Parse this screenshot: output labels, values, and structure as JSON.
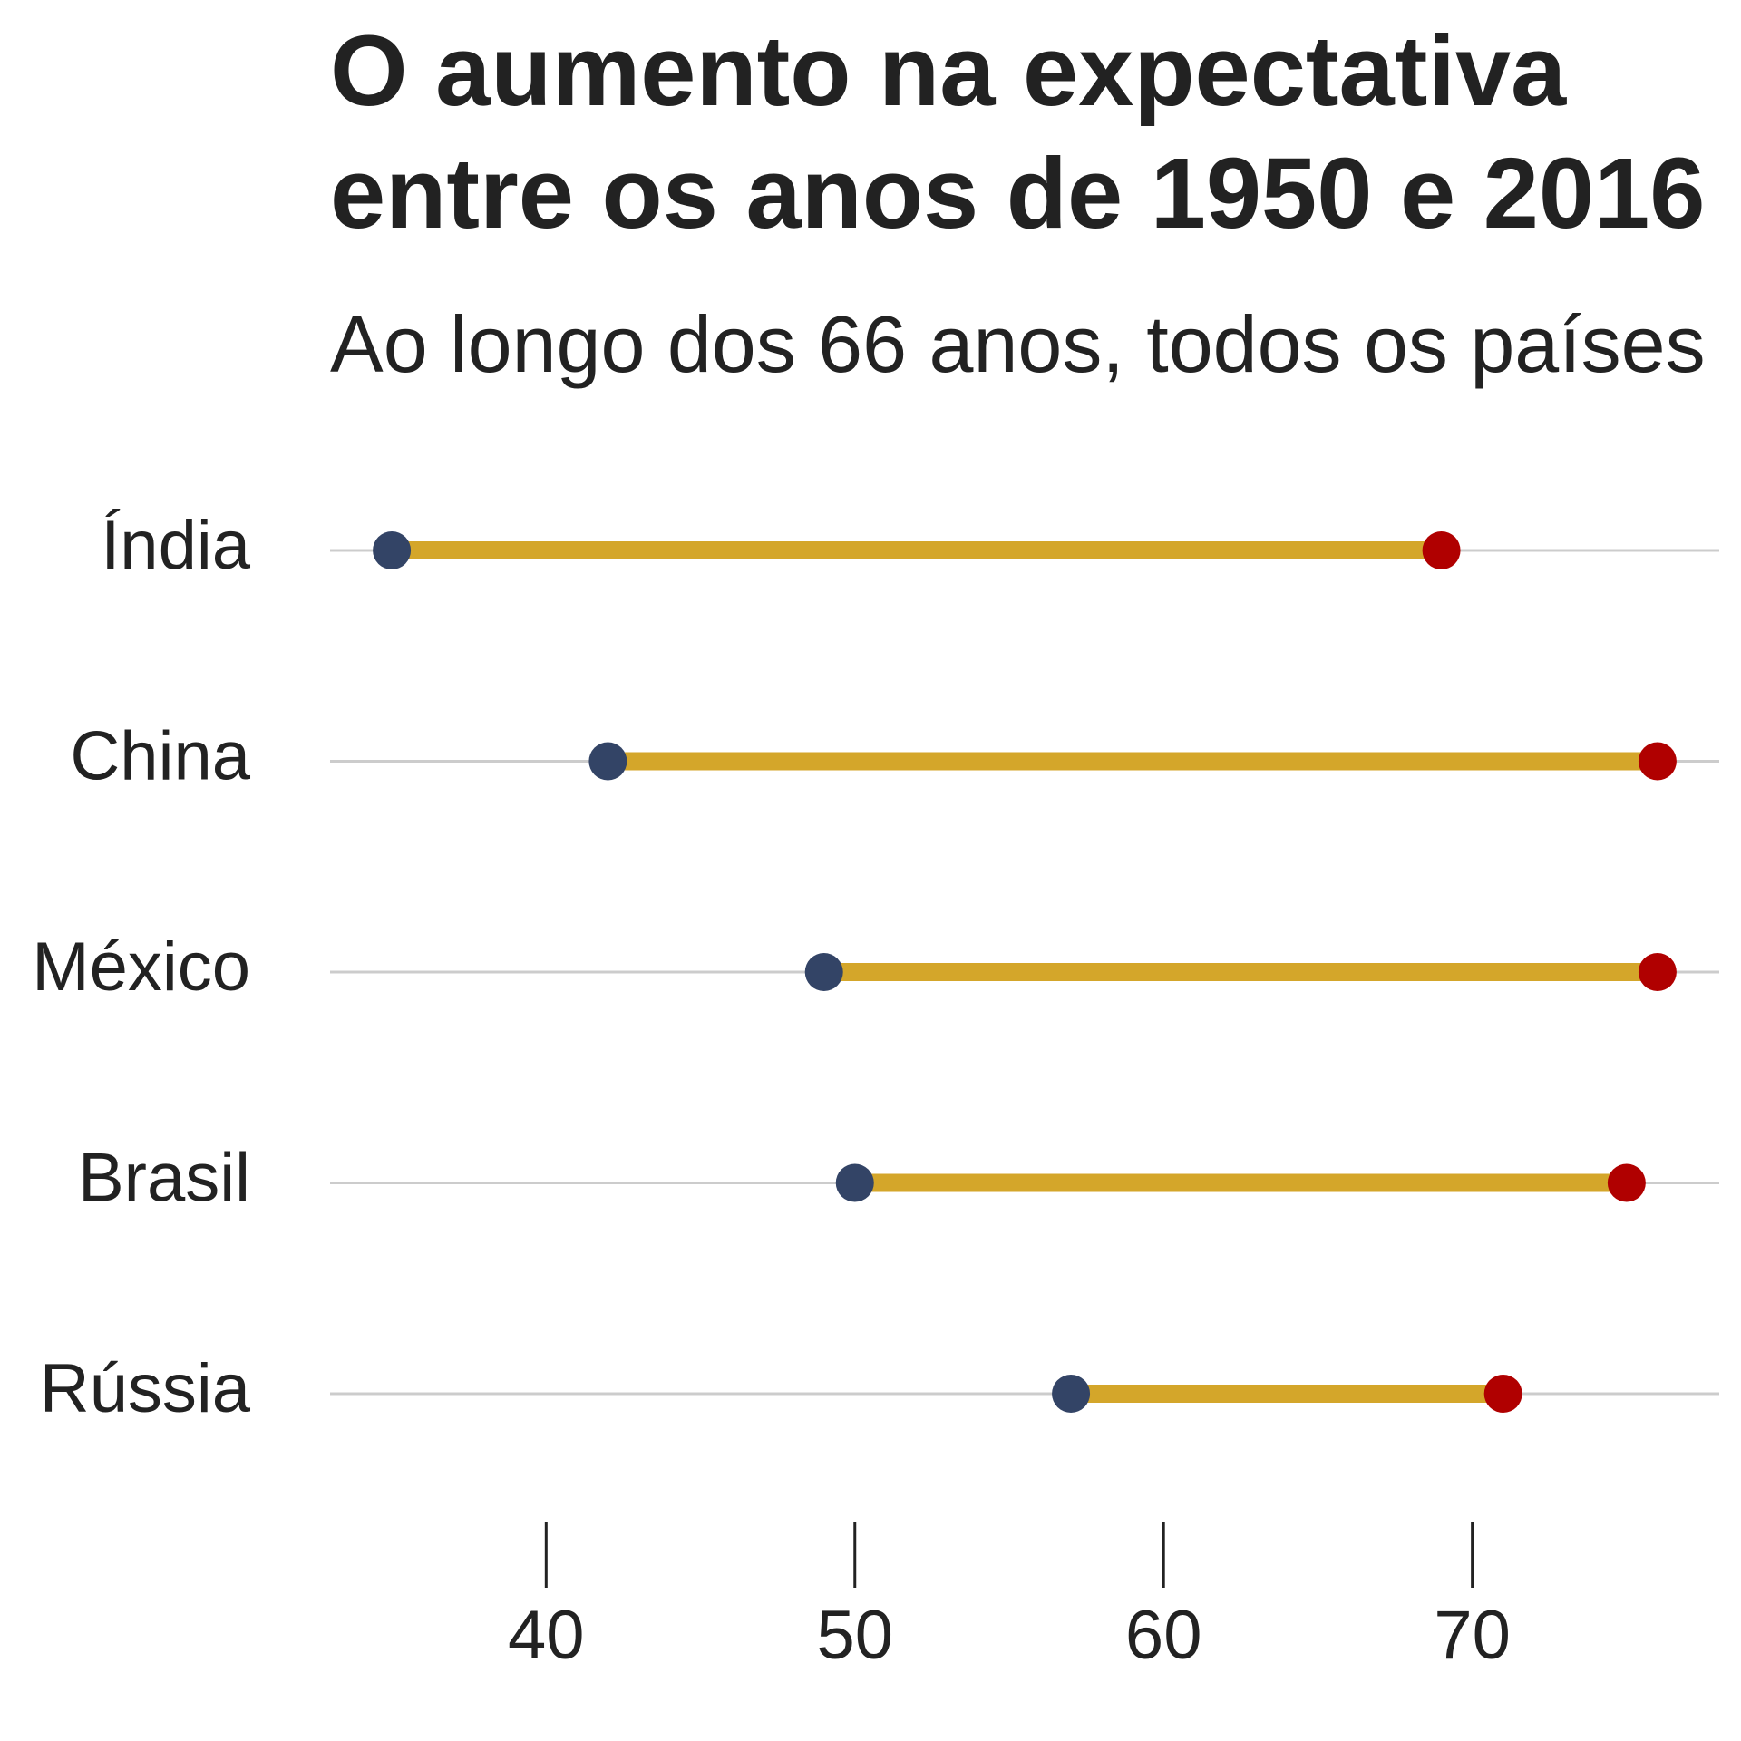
{
  "chart_data": {
    "type": "dumbbell",
    "title": [
      "O aumento na expectativa",
      "entre os anos de 1950 e 2016"
    ],
    "subtitle": "Ao longo dos 66 anos, todos os países",
    "categories": [
      "Índia",
      "China",
      "México",
      "Brasil",
      "Rússia"
    ],
    "series": [
      {
        "color": "#334466",
        "values": [
          35,
          42,
          49,
          50,
          57
        ]
      },
      {
        "color": "#b00000",
        "values": [
          69,
          76,
          76,
          75,
          71
        ]
      }
    ],
    "segment_color": "#d4a62a",
    "xlim": [
      33,
      78
    ],
    "xticks": [
      40,
      50,
      60,
      70
    ],
    "grid": true
  }
}
